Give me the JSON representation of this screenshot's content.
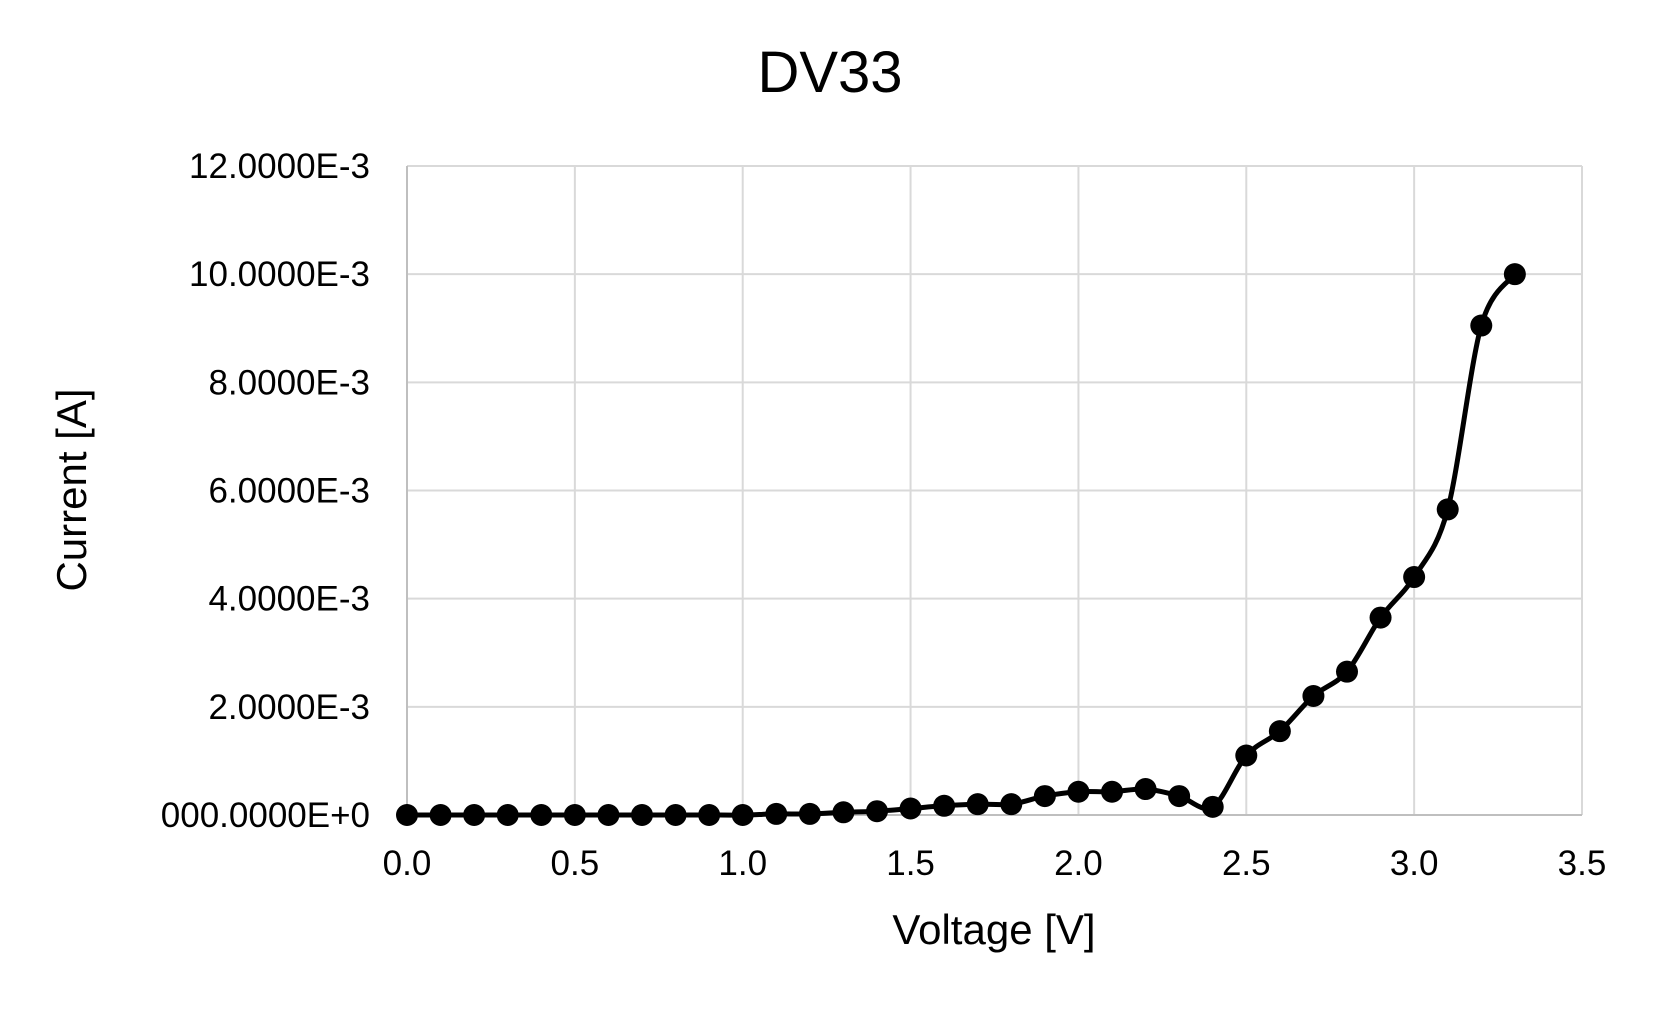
{
  "chart_data": {
    "type": "line",
    "title": "DV33",
    "xlabel": "Voltage [V]",
    "ylabel": "Current [A]",
    "xlim": [
      0.0,
      3.5
    ],
    "ylim": [
      0.0,
      0.012
    ],
    "x_ticks": [
      0.0,
      0.5,
      1.0,
      1.5,
      2.0,
      2.5,
      3.0,
      3.5
    ],
    "x_tick_labels": [
      "0.0",
      "0.5",
      "1.0",
      "1.5",
      "2.0",
      "2.5",
      "3.0",
      "3.5"
    ],
    "y_ticks": [
      0.0,
      0.002,
      0.004,
      0.006,
      0.008,
      0.01,
      0.012
    ],
    "y_tick_labels": [
      "000.0000E+0",
      "2.0000E-3",
      "4.0000E-3",
      "6.0000E-3",
      "8.0000E-3",
      "10.0000E-3",
      "12.0000E-3"
    ],
    "grid": true,
    "legend": false,
    "line_color": "#000000",
    "grid_color": "#d9d9d9",
    "series": [
      {
        "x": [
          0.0,
          0.1,
          0.2,
          0.3,
          0.4,
          0.5,
          0.6,
          0.7,
          0.8,
          0.9,
          1.0,
          1.1,
          1.2,
          1.3,
          1.4,
          1.5,
          1.6,
          1.7,
          1.8,
          1.9,
          2.0,
          2.1,
          2.2,
          2.3,
          2.4,
          2.5,
          2.6,
          2.7,
          2.8,
          2.9,
          3.0,
          3.1,
          3.2,
          3.3
        ],
        "y": [
          0.0,
          0.0,
          0.0,
          0.0,
          0.0,
          0.0,
          0.0,
          0.0,
          0.0,
          0.0,
          0.0,
          2e-05,
          2e-05,
          5e-05,
          7e-05,
          0.00012,
          0.00017,
          0.0002,
          0.0002,
          0.00035,
          0.00043,
          0.00043,
          0.00048,
          0.00035,
          0.00015,
          0.0011,
          0.00155,
          0.0022,
          0.00265,
          0.00365,
          0.0044,
          0.00565,
          0.00905,
          0.01
        ]
      }
    ]
  }
}
